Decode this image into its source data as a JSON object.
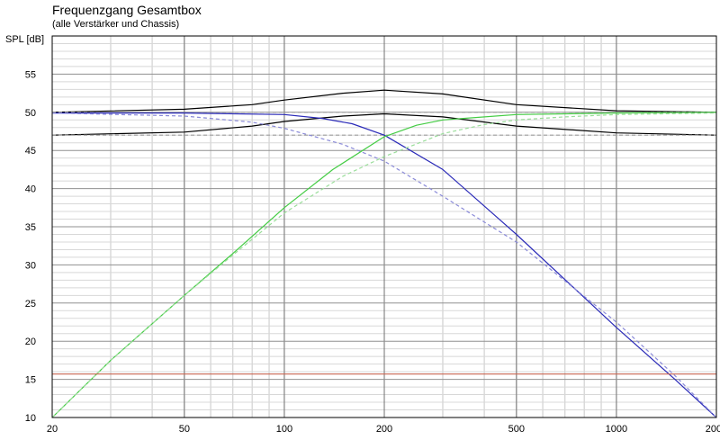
{
  "chart_data": {
    "type": "line",
    "title": "Frequenzgang Gesamtbox",
    "subtitle": "(alle Verstärker und Chassis)",
    "ylabel": "SPL [dB]",
    "xlabel": "",
    "x_scale": "log",
    "xlim": [
      20,
      2000
    ],
    "ylim": [
      10,
      60
    ],
    "x_ticks": [
      20,
      50,
      100,
      200,
      500,
      1000,
      2000
    ],
    "y_ticks": [
      10,
      15,
      20,
      25,
      30,
      35,
      40,
      45,
      50,
      55
    ],
    "grid": true,
    "series": [
      {
        "color": "#000000",
        "style": "solid",
        "x": [
          20,
          50,
          80,
          100,
          150,
          200,
          300,
          500,
          1000,
          2000
        ],
        "y": [
          50.0,
          50.4,
          51.0,
          51.6,
          52.5,
          52.9,
          52.4,
          51.0,
          50.2,
          50.0
        ]
      },
      {
        "color": "#000000",
        "style": "solid",
        "x": [
          20,
          50,
          80,
          100,
          150,
          200,
          300,
          500,
          1000,
          2000
        ],
        "y": [
          47.0,
          47.4,
          48.2,
          48.8,
          49.5,
          49.8,
          49.4,
          48.2,
          47.3,
          47.0
        ]
      },
      {
        "color": "#a0a0a0",
        "style": "dashed",
        "x": [
          20,
          2000
        ],
        "y": [
          50.0,
          50.0
        ]
      },
      {
        "color": "#a0a0a0",
        "style": "dashed",
        "x": [
          20,
          2000
        ],
        "y": [
          47.0,
          47.0
        ]
      },
      {
        "color": "#2a2ab8",
        "style": "solid",
        "x": [
          20,
          50,
          100,
          130,
          160,
          200,
          300,
          500,
          1000,
          1500,
          2000
        ],
        "y": [
          49.9,
          49.9,
          49.7,
          49.2,
          48.5,
          47.0,
          42.5,
          34.0,
          21.8,
          15.0,
          10.0
        ]
      },
      {
        "color": "#8a8ad8",
        "style": "dashed",
        "x": [
          20,
          50,
          80,
          100,
          150,
          200,
          300,
          500,
          1000,
          1500,
          2000
        ],
        "y": [
          49.9,
          49.5,
          48.7,
          47.9,
          45.8,
          43.6,
          39.0,
          33.0,
          22.5,
          15.5,
          10.0
        ]
      },
      {
        "color": "#44cc44",
        "style": "solid",
        "x": [
          20,
          30,
          50,
          70,
          100,
          140,
          200,
          250,
          300,
          500,
          1000,
          2000
        ],
        "y": [
          10.0,
          17.5,
          26.0,
          31.5,
          37.5,
          42.5,
          46.8,
          48.3,
          49.0,
          49.7,
          49.9,
          50.0
        ]
      },
      {
        "color": "#99dd99",
        "style": "dashed",
        "x": [
          20,
          30,
          50,
          70,
          100,
          150,
          200,
          300,
          400,
          500,
          700,
          1000,
          2000
        ],
        "y": [
          10.0,
          17.5,
          26.0,
          31.3,
          36.8,
          41.6,
          44.2,
          47.2,
          48.4,
          49.0,
          49.4,
          49.7,
          49.9
        ]
      },
      {
        "color": "#c86450",
        "style": "solid",
        "x": [
          20,
          2000
        ],
        "y": [
          15.7,
          15.7
        ]
      }
    ]
  }
}
